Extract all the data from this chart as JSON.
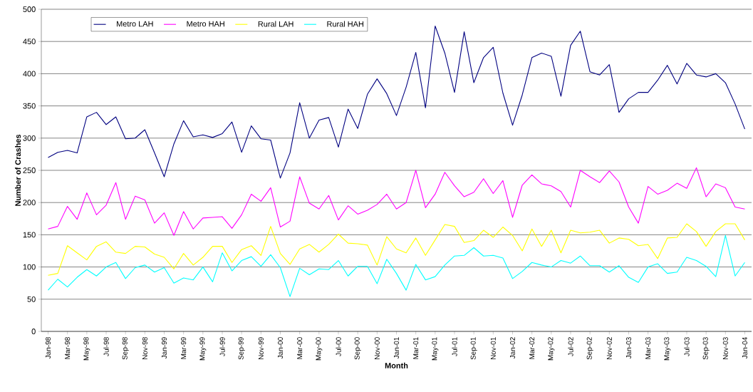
{
  "chart_data": {
    "type": "line",
    "xlabel": "Month",
    "ylabel": "Number of Crashes",
    "categories": [
      "Jan-98",
      null,
      "Mar-98",
      null,
      "May-98",
      null,
      "Jul-98",
      null,
      "Sep-98",
      null,
      "Nov-98",
      null,
      "Jan-99",
      null,
      "Mar-99",
      null,
      "May-99",
      null,
      "Jul-99",
      null,
      "Sep-99",
      null,
      "Nov-99",
      null,
      "Jan-00",
      null,
      "Mar-00",
      null,
      "May-00",
      null,
      "Jul-00",
      null,
      "Sep-00",
      null,
      "Nov-00",
      null,
      "Jan-01",
      null,
      "Mar-01",
      null,
      "May-01",
      null,
      "Jul-01",
      null,
      "Sep-01",
      null,
      "Nov-01",
      null,
      "Jan-02",
      null,
      "Mar-02",
      null,
      "May-02",
      null,
      "Jul-02",
      null,
      "Sep-02",
      null,
      "Nov-02",
      null,
      "Jan-03",
      null,
      "Mar-03",
      null,
      "May-03",
      null,
      "Jul-03",
      null,
      "Sep-03",
      null,
      "Nov-03",
      null,
      "Jan-04"
    ],
    "series": [
      {
        "name": "Metro LAH",
        "color": "#000080",
        "values": [
          270,
          278,
          281,
          277,
          333,
          340,
          321,
          333,
          299,
          300,
          313,
          277,
          240,
          291,
          327,
          302,
          305,
          301,
          307,
          325,
          278,
          319,
          299,
          297,
          238,
          277,
          355,
          300,
          328,
          332,
          286,
          345,
          315,
          368,
          392,
          369,
          335,
          379,
          433,
          347,
          474,
          432,
          371,
          465,
          386,
          425,
          441,
          370,
          320,
          367,
          425,
          432,
          427,
          365,
          444,
          466,
          403,
          398,
          414,
          340,
          361,
          371,
          371,
          390,
          413,
          384,
          416,
          398,
          395,
          400,
          386,
          353,
          314
        ]
      },
      {
        "name": "Metro HAH",
        "color": "#ff00ff",
        "values": [
          159,
          163,
          194,
          174,
          215,
          181,
          196,
          231,
          174,
          210,
          204,
          168,
          184,
          149,
          186,
          159,
          176,
          177,
          178,
          160,
          181,
          213,
          202,
          223,
          162,
          171,
          240,
          199,
          190,
          211,
          173,
          195,
          182,
          188,
          197,
          213,
          190,
          200,
          250,
          192,
          213,
          247,
          226,
          209,
          216,
          237,
          214,
          234,
          177,
          227,
          243,
          229,
          226,
          217,
          193,
          250,
          240,
          231,
          249,
          232,
          193,
          168,
          225,
          213,
          219,
          230,
          222,
          254,
          209,
          229,
          223,
          193,
          190
        ]
      },
      {
        "name": "Rural LAH",
        "color": "#ffff00",
        "values": [
          87,
          90,
          133,
          122,
          111,
          132,
          139,
          123,
          121,
          132,
          131,
          120,
          115,
          97,
          121,
          103,
          115,
          132,
          132,
          107,
          127,
          133,
          118,
          163,
          121,
          104,
          128,
          135,
          123,
          135,
          151,
          137,
          136,
          134,
          103,
          147,
          128,
          122,
          145,
          118,
          142,
          166,
          163,
          138,
          141,
          157,
          146,
          162,
          149,
          125,
          159,
          132,
          157,
          122,
          157,
          153,
          154,
          157,
          137,
          145,
          143,
          133,
          135,
          113,
          145,
          146,
          167,
          155,
          132,
          155,
          167,
          167,
          142
        ]
      },
      {
        "name": "Rural HAH",
        "color": "#00ffff",
        "values": [
          64,
          81,
          69,
          84,
          96,
          86,
          100,
          107,
          82,
          99,
          103,
          92,
          99,
          75,
          83,
          80,
          100,
          77,
          122,
          94,
          110,
          116,
          101,
          119,
          99,
          54,
          98,
          88,
          97,
          96,
          110,
          86,
          101,
          101,
          74,
          112,
          90,
          64,
          104,
          80,
          85,
          103,
          117,
          118,
          130,
          117,
          118,
          114,
          82,
          93,
          107,
          103,
          100,
          110,
          106,
          117,
          102,
          102,
          92,
          102,
          84,
          76,
          100,
          105,
          90,
          92,
          115,
          110,
          101,
          85,
          149,
          86,
          107
        ]
      }
    ],
    "ylim": [
      0,
      500
    ],
    "yticks": [
      0,
      50,
      100,
      150,
      200,
      250,
      300,
      350,
      400,
      450,
      500
    ],
    "grid": "y",
    "legend": "top left",
    "marker": "none",
    "line_style": "solid"
  }
}
